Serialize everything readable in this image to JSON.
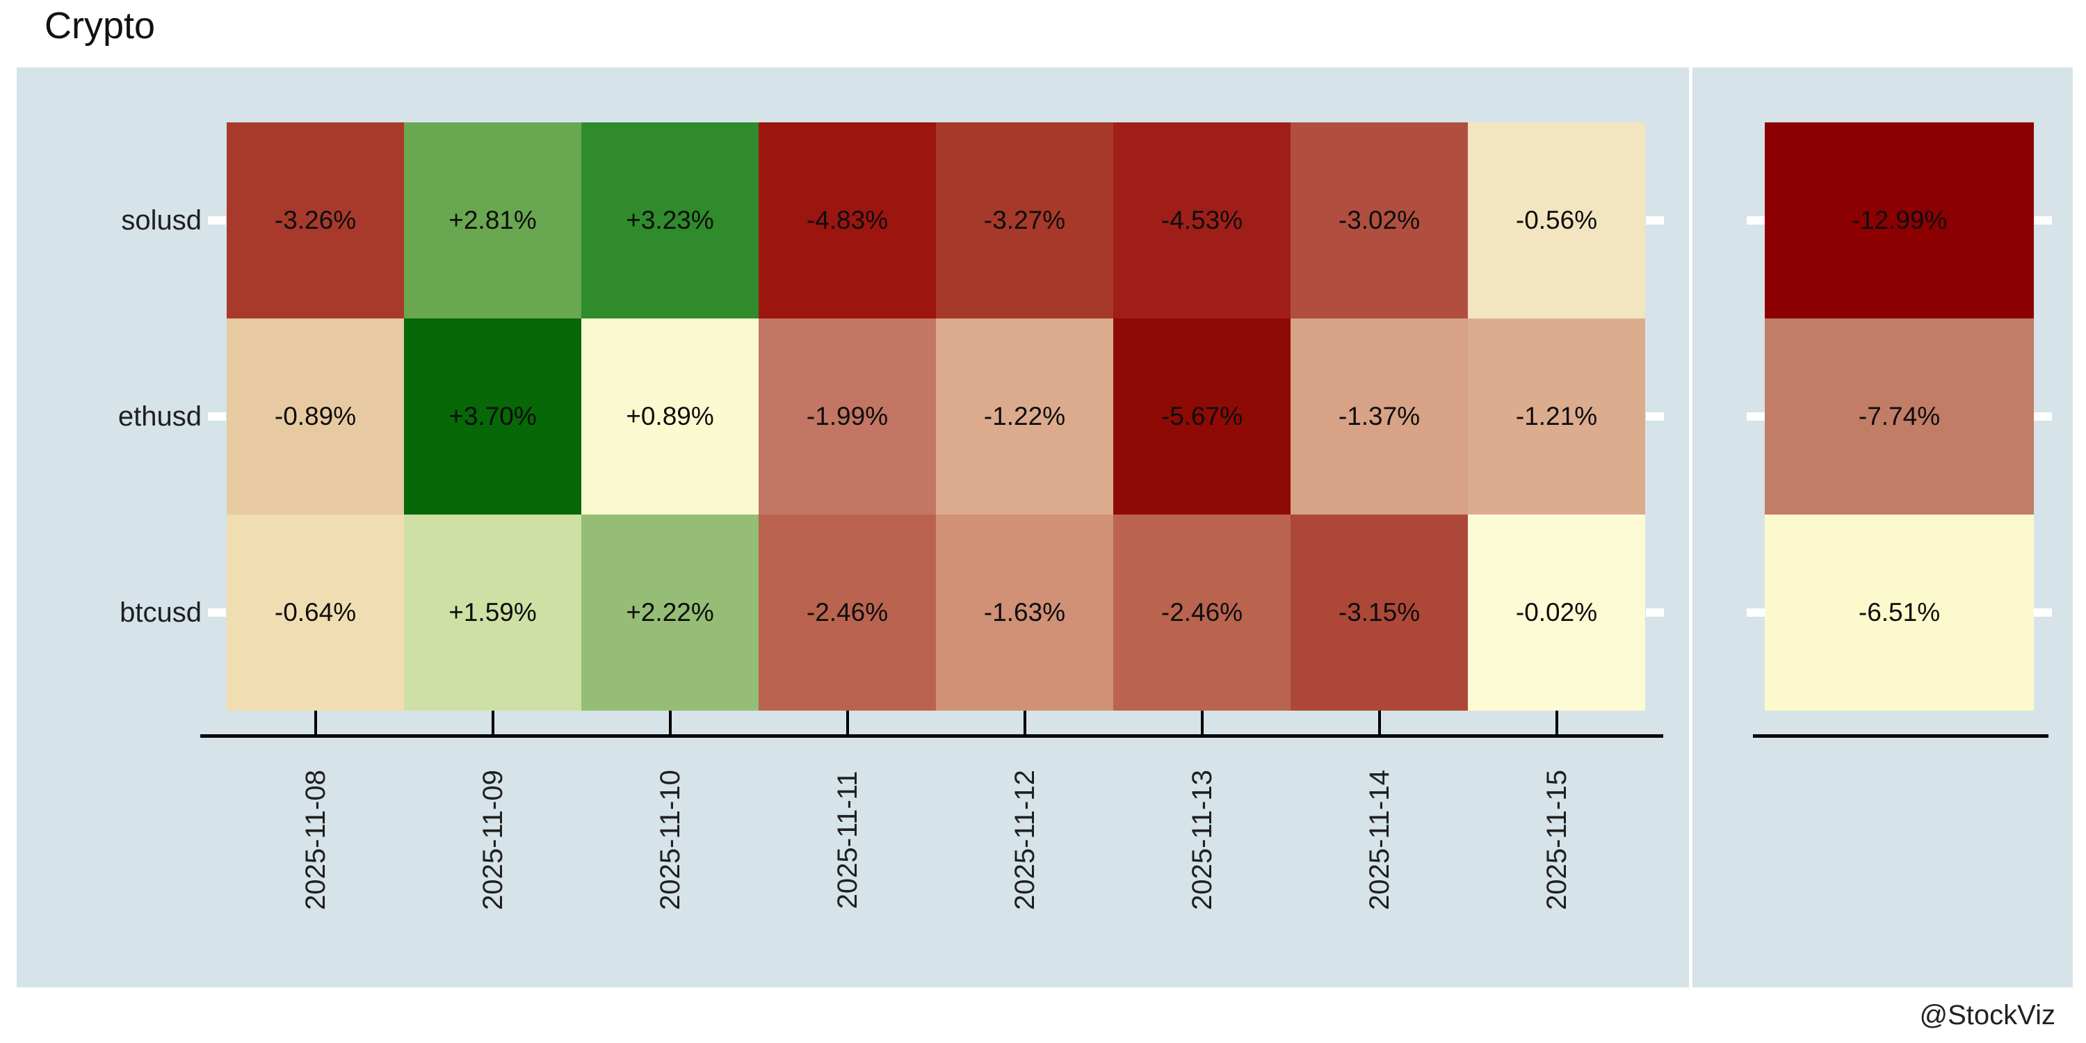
{
  "header": {
    "title": "Crypto"
  },
  "watermark": "@StockViz",
  "chart_data": {
    "type": "heatmap",
    "title": "Crypto",
    "x_categories": [
      "2025-11-08",
      "2025-11-09",
      "2025-11-10",
      "2025-11-11",
      "2025-11-12",
      "2025-11-13",
      "2025-11-14",
      "2025-11-15"
    ],
    "y_categories": [
      "solusd",
      "ethusd",
      "btcusd"
    ],
    "values_pct": [
      [
        -3.26,
        2.81,
        3.23,
        -4.83,
        -3.27,
        -4.53,
        -3.02,
        -0.56
      ],
      [
        -0.89,
        3.7,
        0.89,
        -1.99,
        -1.22,
        -5.67,
        -1.37,
        -1.21
      ],
      [
        -0.64,
        1.59,
        2.22,
        -2.46,
        -1.63,
        -2.46,
        -3.15,
        -0.02
      ]
    ],
    "totals_pct": [
      -12.99,
      -7.74,
      -6.51
    ],
    "cell_colors": [
      [
        "#a83a2b",
        "#69a751",
        "#2f8b2b",
        "#9c150f",
        "#a7392a",
        "#9f1f18",
        "#b04f3f",
        "#f2e5c0"
      ],
      [
        "#e7c9a2",
        "#066806",
        "#fbf9d0",
        "#c27663",
        "#dcab8e",
        "#8e0a04",
        "#d7a285",
        "#dcac8f"
      ],
      [
        "#f0ddb2",
        "#cfe0a5",
        "#96bd76",
        "#ba6450",
        "#d09177",
        "#ba6450",
        "#ad4838",
        "#fdfbd6"
      ]
    ],
    "total_colors": [
      "#8c0002",
      "#c27d66",
      "#fcf9cd"
    ],
    "value_format": "signed percent, 2 decimals",
    "legend_position": "none",
    "grid": false,
    "x_tick_label_rotation_deg": 90,
    "x_axis_range_note": "daily returns panel left, cumulative totals panel right"
  },
  "colors": {
    "page_bg": "#ffffff",
    "panel_bg": "#d6e3e9",
    "axis_line": "#000000",
    "y_tick": "#ffffff",
    "label_text": "#1f1f1f",
    "cell_text": "#0d0d0d",
    "title_text": "#111111"
  }
}
